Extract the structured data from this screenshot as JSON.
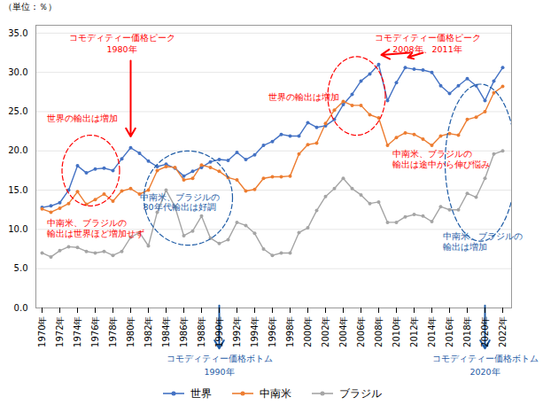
{
  "chart_data": {
    "type": "line",
    "ylabel": "（単位：％）",
    "x": [
      1970,
      1971,
      1972,
      1973,
      1974,
      1975,
      1976,
      1977,
      1978,
      1979,
      1980,
      1981,
      1982,
      1983,
      1984,
      1985,
      1986,
      1987,
      1988,
      1989,
      1990,
      1991,
      1992,
      1993,
      1994,
      1995,
      1996,
      1997,
      1998,
      1999,
      2000,
      2001,
      2002,
      2003,
      2004,
      2005,
      2006,
      2007,
      2008,
      2009,
      2010,
      2011,
      2012,
      2013,
      2014,
      2015,
      2016,
      2017,
      2018,
      2019,
      2020,
      2021,
      2022
    ],
    "series": [
      {
        "name": "世界",
        "color": "#4472C4",
        "values": [
          12.8,
          13.0,
          13.4,
          15.0,
          18.1,
          17.2,
          17.7,
          17.8,
          17.5,
          19.0,
          20.4,
          19.7,
          18.7,
          18.0,
          18.3,
          17.8,
          16.8,
          17.4,
          17.9,
          18.6,
          18.9,
          18.8,
          19.8,
          18.9,
          19.5,
          20.7,
          21.2,
          22.1,
          21.9,
          21.9,
          23.6,
          23.0,
          23.2,
          24.0,
          25.9,
          27.2,
          28.9,
          29.8,
          31.0,
          26.4,
          28.7,
          30.6,
          30.4,
          30.3,
          30.0,
          28.3,
          27.3,
          28.3,
          29.2,
          28.3,
          26.4,
          28.9,
          30.6
        ]
      },
      {
        "name": "中南米",
        "color": "#ED7D31",
        "values": [
          12.6,
          12.2,
          12.7,
          13.3,
          14.8,
          13.2,
          13.8,
          14.5,
          13.6,
          14.9,
          15.2,
          14.5,
          15.0,
          17.5,
          18.0,
          17.9,
          16.3,
          16.5,
          18.2,
          17.9,
          17.4,
          16.6,
          16.3,
          14.9,
          15.1,
          16.5,
          16.7,
          16.7,
          16.8,
          19.6,
          20.8,
          21.0,
          23.5,
          25.2,
          26.3,
          25.8,
          25.8,
          24.6,
          24.2,
          20.7,
          21.7,
          22.3,
          22.1,
          21.5,
          20.7,
          21.9,
          22.2,
          22.0,
          24.0,
          24.3,
          25.0,
          27.4,
          28.2
        ]
      },
      {
        "name": "ブラジル",
        "color": "#A5A5A5",
        "values": [
          7.0,
          6.5,
          7.3,
          7.8,
          7.7,
          7.2,
          7.0,
          7.2,
          6.7,
          7.2,
          9.0,
          9.6,
          7.9,
          12.2,
          15.0,
          12.9,
          9.2,
          9.8,
          11.7,
          8.9,
          8.2,
          8.7,
          10.9,
          10.5,
          9.5,
          7.5,
          6.7,
          7.0,
          7.0,
          9.6,
          10.2,
          12.4,
          14.2,
          15.2,
          16.5,
          15.2,
          14.4,
          13.3,
          13.5,
          10.9,
          10.9,
          11.6,
          11.9,
          11.7,
          11.0,
          12.9,
          12.5,
          12.5,
          14.6,
          14.1,
          16.5,
          19.6,
          20.0
        ]
      }
    ],
    "marker": "circle",
    "xlim": [
      1969.3,
      2023.0
    ],
    "xticks": [
      {
        "value": 1970,
        "label": "1970年"
      },
      {
        "value": 1972,
        "label": "1972年"
      },
      {
        "value": 1974,
        "label": "1974年"
      },
      {
        "value": 1976,
        "label": "1976年"
      },
      {
        "value": 1978,
        "label": "1978年"
      },
      {
        "value": 1980,
        "label": "1980年"
      },
      {
        "value": 1982,
        "label": "1982年"
      },
      {
        "value": 1984,
        "label": "1984年"
      },
      {
        "value": 1986,
        "label": "1986年"
      },
      {
        "value": 1988,
        "label": "1988年"
      },
      {
        "value": 1990,
        "label": "1990年"
      },
      {
        "value": 1992,
        "label": "1992年"
      },
      {
        "value": 1994,
        "label": "1994年"
      },
      {
        "value": 1996,
        "label": "1996年"
      },
      {
        "value": 1998,
        "label": "1998年"
      },
      {
        "value": 2000,
        "label": "2000年"
      },
      {
        "value": 2002,
        "label": "2002年"
      },
      {
        "value": 2004,
        "label": "2004年"
      },
      {
        "value": 2006,
        "label": "2006年"
      },
      {
        "value": 2008,
        "label": "2008年"
      },
      {
        "value": 2010,
        "label": "2010年"
      },
      {
        "value": 2012,
        "label": "2012年"
      },
      {
        "value": 2014,
        "label": "2014年"
      },
      {
        "value": 2016,
        "label": "2016年"
      },
      {
        "value": 2018,
        "label": "2018年"
      },
      {
        "value": 2020,
        "label": "2020年"
      },
      {
        "value": 2022,
        "label": "2022年"
      }
    ],
    "ylim": [
      0,
      36
    ],
    "yticks": [
      {
        "value": 0,
        "label": "0.0"
      },
      {
        "value": 5,
        "label": "5.0"
      },
      {
        "value": 10,
        "label": "10.0"
      },
      {
        "value": 15,
        "label": "15.0"
      },
      {
        "value": 20,
        "label": "20.0"
      },
      {
        "value": 25,
        "label": "25.0"
      },
      {
        "value": 30,
        "label": "30.0"
      },
      {
        "value": 35,
        "label": "35.0"
      }
    ],
    "grid": true,
    "legend": "bottom",
    "annotations": [
      {
        "text": "コモディティー価格ピーク",
        "x": 1979,
        "y": 34.8,
        "color": "#FF0000"
      },
      {
        "text": "1980年",
        "x": 1979,
        "y": 33.3,
        "color": "#FF0000"
      },
      {
        "text": "コモディティー価格ピーク",
        "x": 2013.5,
        "y": 34.8,
        "color": "#FF0000"
      },
      {
        "text": "2008年、2011年",
        "x": 2013.5,
        "y": 33.3,
        "color": "#FF0000"
      },
      {
        "text": "世界の輸出は増加",
        "x": 1974.5,
        "y": 23.8,
        "color": "#FF0000"
      },
      {
        "text": "世界の輸出は増加",
        "x": 1999.5,
        "y": 26.5,
        "color": "#FF0000"
      },
      {
        "text": "中南米、ブラジルの",
        "x": 1970.5,
        "y": 11.2,
        "color": "#FF0000"
      },
      {
        "text": "輸出は世界ほど増加せず",
        "x": 1970.5,
        "y": 9.9,
        "color": "#FF0000"
      },
      {
        "text": "中南米、ブラジルの",
        "x": 1985.5,
        "y": 14.5,
        "color": "#1F5CA6"
      },
      {
        "text": "80年代輸出は好調",
        "x": 1985.5,
        "y": 13.2,
        "color": "#1F5CA6"
      },
      {
        "text": "中南米、ブラジルの",
        "x": 2009.5,
        "y": 20.0,
        "color": "#FF0000"
      },
      {
        "text": "輸出は途中から伸び悩み",
        "x": 2009.5,
        "y": 18.7,
        "color": "#FF0000"
      },
      {
        "text": "中南米、ブラジルの",
        "x": 2015.2,
        "y": 9.5,
        "color": "#1F5CA6"
      },
      {
        "text": "輸出は増加",
        "x": 2015.2,
        "y": 8.2,
        "color": "#1F5CA6"
      },
      {
        "text": "コモディティー価格ボトム",
        "x": 1990,
        "y": -1.5,
        "color": "#1F5CA6"
      },
      {
        "text": "1990年",
        "x": 1990,
        "y": -3.2,
        "color": "#1F5CA6"
      },
      {
        "text": "コモディティー価格ボトム",
        "x": 2020,
        "y": -1.5,
        "color": "#1F5CA6"
      },
      {
        "text": "2020年",
        "x": 2020,
        "y": -3.2,
        "color": "#1F5CA6"
      }
    ]
  }
}
